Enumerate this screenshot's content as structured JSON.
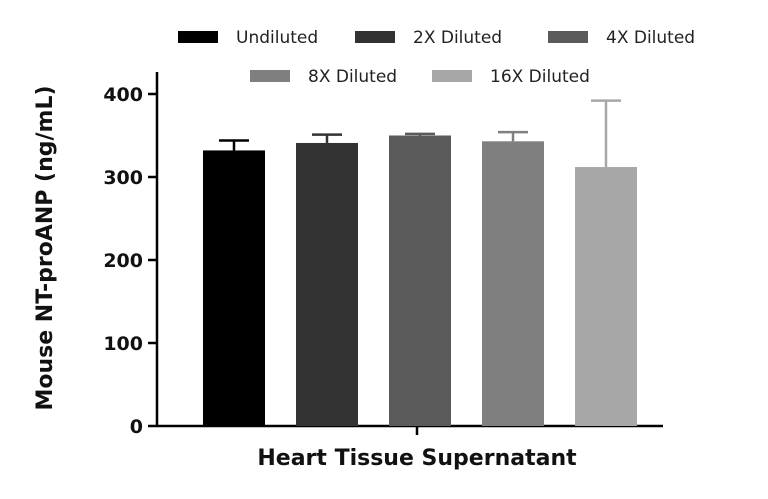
{
  "chart_data": {
    "type": "bar",
    "xlabel": "Heart Tissue Supernatant",
    "ylabel": "Mouse NT-proANP (ng/mL)",
    "ylim": [
      0,
      400
    ],
    "yticks": [
      0,
      100,
      200,
      300,
      400
    ],
    "grid": false,
    "legend_position": "top",
    "series": [
      {
        "name": "Undiluted",
        "value": 332,
        "error": 12,
        "color": "#000000"
      },
      {
        "name": "2X Diluted",
        "value": 341,
        "error": 10,
        "color": "#333333"
      },
      {
        "name": "4X Diluted",
        "value": 350,
        "error": 2,
        "color": "#5a5a5a"
      },
      {
        "name": "8X Diluted",
        "value": 343,
        "error": 11,
        "color": "#7f7f7f"
      },
      {
        "name": "16X Diluted",
        "value": 312,
        "error": 80,
        "color": "#a7a7a7"
      }
    ]
  }
}
